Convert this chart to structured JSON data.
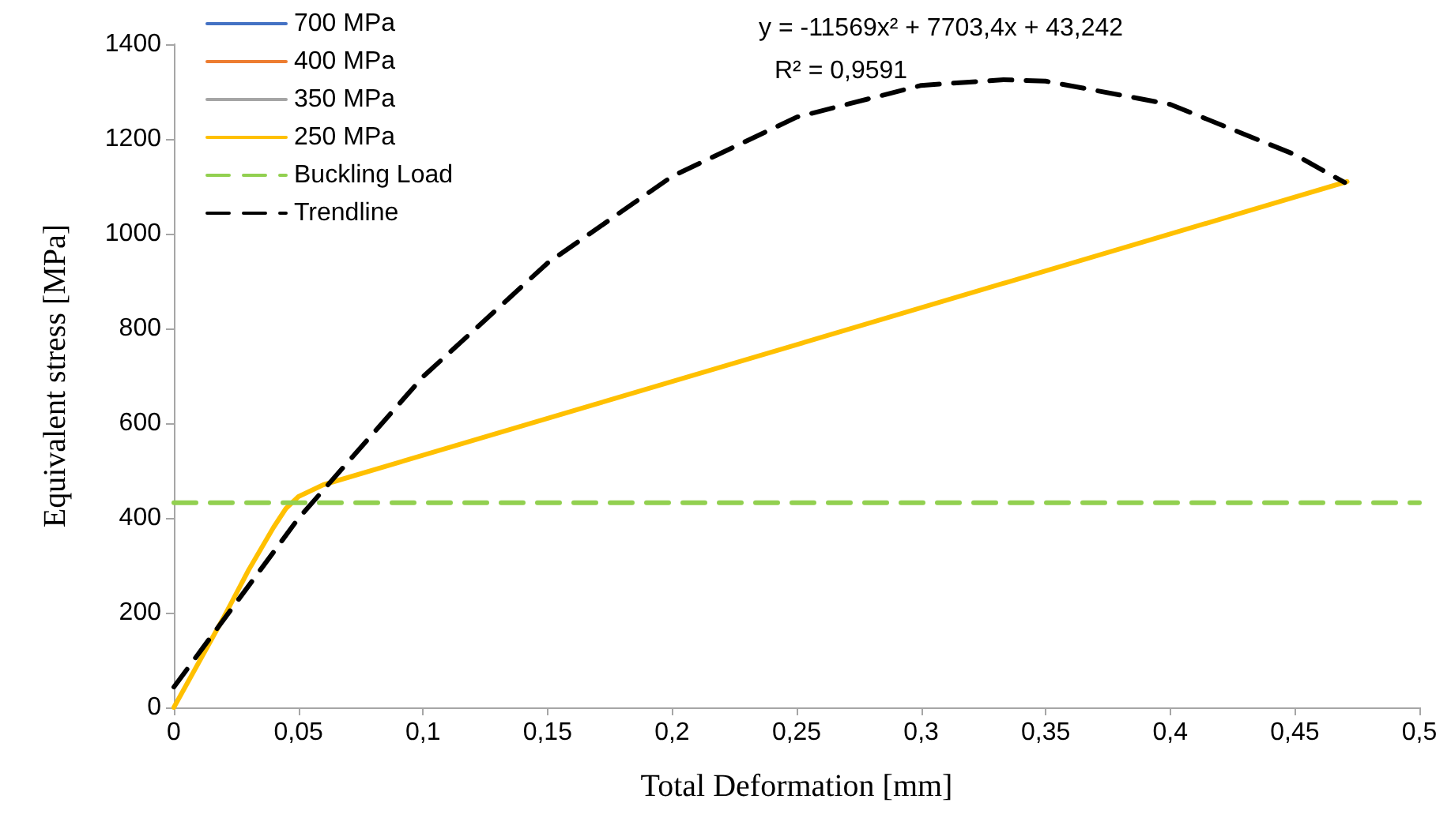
{
  "chart_data": {
    "type": "line",
    "xlabel": "Total Deformation [mm]",
    "ylabel": "Equivalent stress [MPa]",
    "annotations": [
      "y = -11569x² + 7703,4x + 43,242",
      "R² = 0,9591"
    ],
    "xlim": [
      0,
      0.5
    ],
    "xticks": [
      0,
      {
        "value": 0.05,
        "label": "0,05"
      },
      {
        "value": 0.1,
        "label": "0,1"
      },
      {
        "value": 0.15,
        "label": "0,15"
      },
      {
        "value": 0.2,
        "label": "0,2"
      },
      {
        "value": 0.25,
        "label": "0,25"
      },
      {
        "value": 0.3,
        "label": "0,3"
      },
      {
        "value": 0.35,
        "label": "0,35"
      },
      {
        "value": 0.4,
        "label": "0,4"
      },
      {
        "value": 0.45,
        "label": "0,45"
      },
      {
        "value": 0.5,
        "label": "0,5"
      }
    ],
    "ylim": [
      0,
      1400
    ],
    "yticks": [
      0,
      200,
      400,
      600,
      800,
      1000,
      1200,
      1400
    ],
    "grid": false,
    "legend": "top left",
    "marker": "none",
    "series": [
      {
        "name": "700 MPa",
        "color": "#4472c4"
      },
      {
        "name": "400 MPa",
        "color": "#ed7d31"
      },
      {
        "name": "350 MPa",
        "color": "#a5a5a5"
      },
      {
        "name": "250 MPa",
        "color": "#ffc000",
        "x": [
          0,
          0.01,
          0.02,
          0.03,
          0.04,
          0.045,
          0.05,
          0.06,
          0.471
        ],
        "values": [
          0,
          95,
          190,
          290,
          380,
          420,
          445,
          470,
          1110
        ]
      },
      {
        "name": "Buckling Load",
        "color": "#92d050",
        "line_style": "dashed",
        "x": [
          0,
          0.5
        ],
        "values": [
          432,
          432
        ]
      },
      {
        "name": "Trendline",
        "color": "#000000",
        "line_style": "dashed",
        "x": [
          0,
          0.05,
          0.1,
          0.15,
          0.2,
          0.25,
          0.3,
          0.333,
          0.35,
          0.4,
          0.45,
          0.47
        ],
        "values": [
          43,
          399,
          698,
          938,
          1121,
          1246,
          1313,
          1325,
          1322,
          1273,
          1167,
          1108
        ]
      }
    ]
  }
}
